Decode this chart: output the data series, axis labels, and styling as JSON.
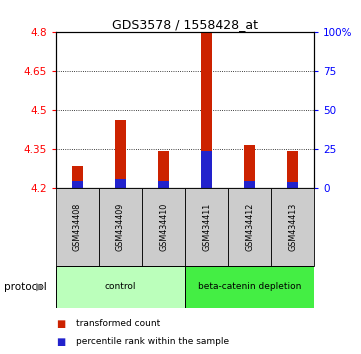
{
  "title": "GDS3578 / 1558428_at",
  "samples": [
    "GSM434408",
    "GSM434409",
    "GSM434410",
    "GSM434411",
    "GSM434412",
    "GSM434413"
  ],
  "red_tops": [
    4.285,
    4.46,
    4.34,
    4.8,
    4.365,
    4.34
  ],
  "blue_tops": [
    4.225,
    4.235,
    4.225,
    4.34,
    4.225,
    4.22
  ],
  "bar_bottom": 4.2,
  "ylim_left": [
    4.2,
    4.8
  ],
  "ylim_right": [
    0,
    100
  ],
  "left_ticks": [
    4.2,
    4.35,
    4.5,
    4.65,
    4.8
  ],
  "right_ticks": [
    0,
    25,
    50,
    75,
    100
  ],
  "right_tick_labels": [
    "0",
    "25",
    "50",
    "75",
    "100%"
  ],
  "groups": [
    {
      "label": "control",
      "indices": [
        0,
        1,
        2
      ],
      "color": "#bbffbb"
    },
    {
      "label": "beta-catenin depletion",
      "indices": [
        3,
        4,
        5
      ],
      "color": "#44ee44"
    }
  ],
  "bar_width": 0.25,
  "red_color": "#cc2200",
  "blue_color": "#2222cc",
  "sample_label_bg": "#cccccc",
  "protocol_label": "protocol",
  "legend_items": [
    {
      "label": "transformed count",
      "color": "#cc2200"
    },
    {
      "label": "percentile rank within the sample",
      "color": "#2222cc"
    }
  ]
}
